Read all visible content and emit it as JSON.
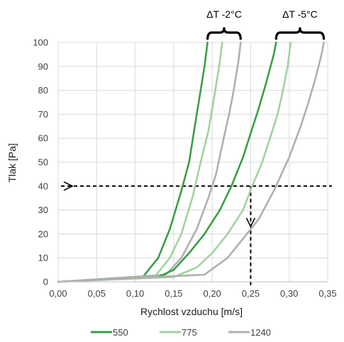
{
  "chart_data": {
    "type": "line",
    "xlabel": "Rychlost vzduchu [m/s]",
    "ylabel": "Tlak [Pa]",
    "xlim": [
      0,
      0.35
    ],
    "ylim": [
      0,
      100
    ],
    "x_ticks": [
      0,
      0.05,
      0.1,
      0.15,
      0.2,
      0.25,
      0.3,
      0.35
    ],
    "x_tick_labels": [
      "0,00",
      "0,05",
      "0,10",
      "0,15",
      "0,20",
      "0,25",
      "0,30",
      "0,35"
    ],
    "y_ticks": [
      0,
      10,
      20,
      30,
      40,
      50,
      60,
      70,
      80,
      90,
      100
    ],
    "y_tick_labels": [
      "0",
      "10",
      "20",
      "30",
      "40",
      "50",
      "60",
      "70",
      "80",
      "90",
      "100"
    ],
    "grid": true,
    "legend_position": "bottom",
    "series": [
      {
        "name": "550",
        "color": "#3a9e46",
        "group": "dT-2",
        "points": [
          [
            0,
            0
          ],
          [
            0.11,
            2
          ],
          [
            0.13,
            10
          ],
          [
            0.145,
            22
          ],
          [
            0.16,
            38
          ],
          [
            0.17,
            50
          ],
          [
            0.175,
            60
          ],
          [
            0.18,
            70
          ],
          [
            0.185,
            80
          ],
          [
            0.19,
            90
          ],
          [
            0.194,
            100
          ]
        ]
      },
      {
        "name": "775",
        "color": "#9fd49c",
        "group": "dT-2",
        "points": [
          [
            0,
            0
          ],
          [
            0.125,
            2
          ],
          [
            0.145,
            10
          ],
          [
            0.16,
            20
          ],
          [
            0.175,
            36
          ],
          [
            0.185,
            50
          ],
          [
            0.195,
            63
          ],
          [
            0.2,
            72
          ],
          [
            0.205,
            82
          ],
          [
            0.21,
            92
          ],
          [
            0.213,
            100
          ]
        ]
      },
      {
        "name": "1240",
        "color": "#b0b0b0",
        "group": "dT-2",
        "points": [
          [
            0,
            0
          ],
          [
            0.14,
            3
          ],
          [
            0.16,
            10
          ],
          [
            0.18,
            22
          ],
          [
            0.195,
            35
          ],
          [
            0.205,
            45
          ],
          [
            0.215,
            60
          ],
          [
            0.222,
            70
          ],
          [
            0.228,
            80
          ],
          [
            0.234,
            92
          ],
          [
            0.237,
            100
          ]
        ]
      },
      {
        "name": "550",
        "color": "#3a9e46",
        "group": "dT-5",
        "points": [
          [
            0,
            0
          ],
          [
            0.13,
            2
          ],
          [
            0.15,
            5
          ],
          [
            0.17,
            12
          ],
          [
            0.19,
            20
          ],
          [
            0.21,
            30
          ],
          [
            0.225,
            40
          ],
          [
            0.24,
            52
          ],
          [
            0.25,
            62
          ],
          [
            0.26,
            72
          ],
          [
            0.27,
            83
          ],
          [
            0.28,
            95
          ],
          [
            0.283,
            100
          ]
        ]
      },
      {
        "name": "775",
        "color": "#9fd49c",
        "group": "dT-5",
        "points": [
          [
            0,
            0
          ],
          [
            0.15,
            2
          ],
          [
            0.18,
            6
          ],
          [
            0.2,
            12
          ],
          [
            0.22,
            20
          ],
          [
            0.24,
            30
          ],
          [
            0.252,
            40
          ],
          [
            0.265,
            50
          ],
          [
            0.275,
            60
          ],
          [
            0.285,
            70
          ],
          [
            0.292,
            80
          ],
          [
            0.298,
            90
          ],
          [
            0.302,
            100
          ]
        ]
      },
      {
        "name": "1240",
        "color": "#b0b0b0",
        "group": "dT-5",
        "points": [
          [
            0,
            0
          ],
          [
            0.19,
            3
          ],
          [
            0.22,
            10
          ],
          [
            0.24,
            18
          ],
          [
            0.26,
            26
          ],
          [
            0.28,
            38
          ],
          [
            0.3,
            52
          ],
          [
            0.315,
            65
          ],
          [
            0.325,
            75
          ],
          [
            0.335,
            86
          ],
          [
            0.342,
            95
          ],
          [
            0.345,
            100
          ]
        ]
      }
    ],
    "legend": [
      {
        "label": "550",
        "color": "#3a9e46"
      },
      {
        "label": "775",
        "color": "#9fd49c"
      },
      {
        "label": "1240",
        "color": "#b0b0b0"
      }
    ],
    "annotations": {
      "brace_labels": [
        "ΔT -2°C",
        "ΔT -5°C"
      ],
      "reference_line": {
        "y": 40,
        "x_drop": 0.25,
        "style": "dashed",
        "color": "#000000"
      }
    }
  }
}
